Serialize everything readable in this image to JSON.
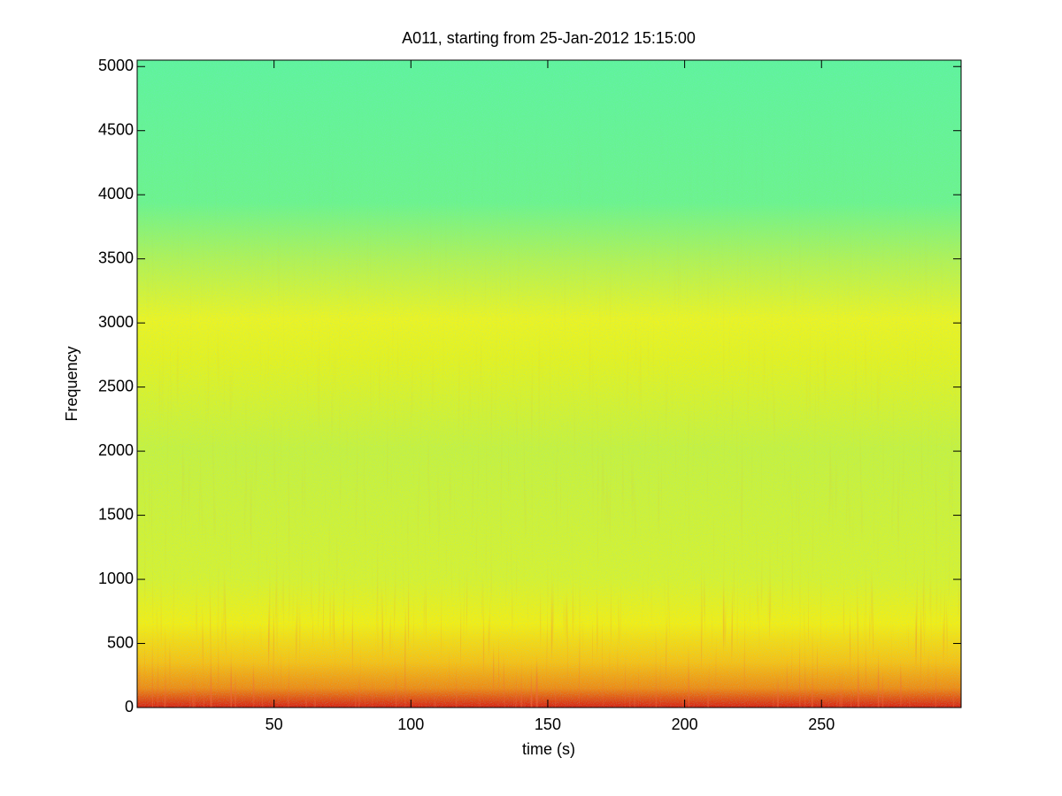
{
  "chart_data": {
    "type": "spectrogram",
    "title": "A011, starting from 25-Jan-2012 15:15:00",
    "x_label": "time (s)",
    "y_label": "Frequency",
    "xlim": [
      0,
      301
    ],
    "ylim": [
      0,
      5050
    ],
    "xticks": [
      50,
      100,
      150,
      200,
      250
    ],
    "yticks": [
      0,
      500,
      1000,
      1500,
      2000,
      2500,
      3000,
      3500,
      4000,
      4500,
      5000
    ]
  }
}
